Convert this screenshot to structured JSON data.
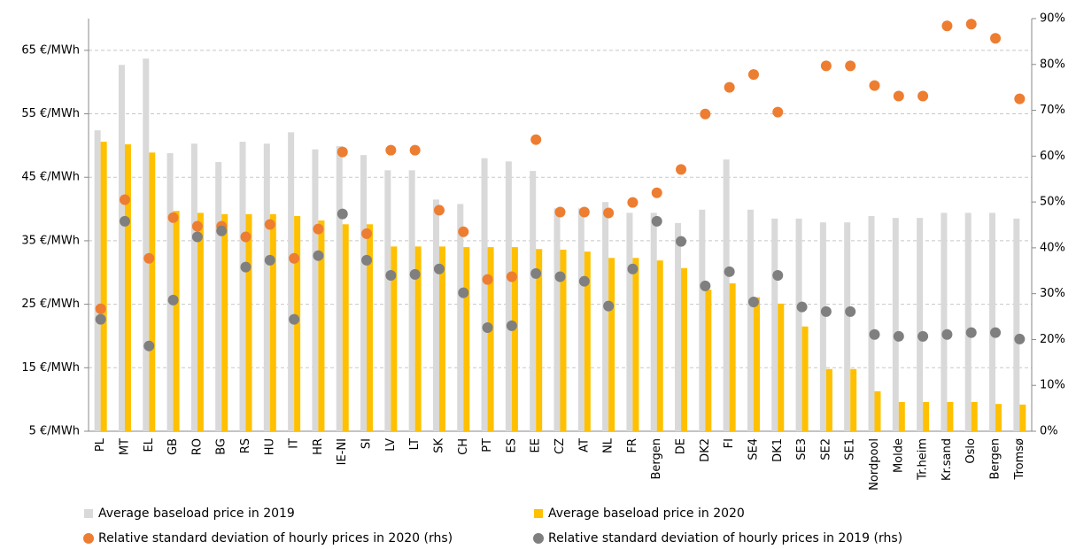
{
  "chart_data": {
    "type": "bar",
    "categories": [
      "PL",
      "MT",
      "EL",
      "GB",
      "RO",
      "BG",
      "RS",
      "HU",
      "IT",
      "HR",
      "IE-NI",
      "SI",
      "LV",
      "LT",
      "SK",
      "CH",
      "PT",
      "ES",
      "EE",
      "CZ",
      "AT",
      "NL",
      "FR",
      "Bergen",
      "DE",
      "DK2",
      "FI",
      "SE4",
      "DK1",
      "SE3",
      "SE2",
      "SE1",
      "Nordpool",
      "Molde",
      "Tr.heim",
      "Kr.sand",
      "Oslo",
      "Bergen",
      "Tromsø"
    ],
    "series": [
      {
        "name": "Average baseload price in 2019",
        "type": "bar",
        "axis": "y",
        "color": "#d9d9d9",
        "values": [
          52.4,
          62.7,
          63.7,
          48.8,
          50.3,
          47.4,
          50.6,
          50.3,
          52.1,
          49.4,
          49.9,
          48.5,
          46.1,
          46.1,
          41.5,
          40.8,
          48.0,
          47.5,
          46.0,
          40.1,
          40.1,
          41.1,
          39.4,
          39.4,
          37.8,
          39.9,
          47.8,
          39.9,
          38.5,
          38.5,
          37.9,
          37.9,
          38.9,
          38.6,
          38.6,
          39.4,
          39.4,
          39.4,
          38.5
        ]
      },
      {
        "name": "Average baseload price in 2020",
        "type": "bar",
        "axis": "y",
        "color": "#ffc000",
        "values": [
          50.6,
          50.2,
          48.9,
          39.7,
          39.4,
          39.2,
          39.2,
          39.2,
          38.9,
          38.2,
          37.6,
          37.6,
          34.1,
          34.1,
          34.1,
          34.0,
          34.0,
          34.0,
          33.7,
          33.6,
          33.3,
          32.3,
          32.3,
          31.9,
          30.7,
          27.3,
          28.3,
          26.1,
          25.1,
          21.5,
          14.8,
          14.8,
          11.3,
          9.6,
          9.6,
          9.6,
          9.6,
          9.3,
          9.2
        ]
      },
      {
        "name": "Relative standard deviation of hourly prices in 2020 (rhs)",
        "type": "scatter",
        "axis": "y2",
        "color": "#ed7d31",
        "values": [
          26.7,
          50.5,
          37.7,
          46.6,
          44.7,
          44.7,
          42.4,
          45.1,
          37.7,
          44.1,
          60.9,
          43.1,
          61.3,
          61.3,
          48.2,
          43.5,
          33.1,
          33.7,
          63.6,
          47.8,
          47.8,
          47.6,
          49.9,
          52.0,
          57.1,
          69.2,
          75.0,
          77.8,
          69.6,
          null,
          79.7,
          79.7,
          75.4,
          73.1,
          73.1,
          88.4,
          88.8,
          85.7,
          72.5
        ]
      },
      {
        "name": "Relative standard deviation of hourly prices in 2019 (rhs)",
        "type": "scatter",
        "axis": "y2",
        "color": "#7f7f7f",
        "values": [
          24.4,
          45.8,
          18.6,
          28.6,
          42.4,
          43.7,
          35.8,
          37.3,
          24.4,
          38.3,
          47.4,
          37.3,
          34.0,
          34.2,
          35.4,
          30.2,
          22.6,
          23.0,
          34.4,
          33.7,
          32.7,
          27.3,
          35.4,
          45.8,
          41.4,
          31.7,
          34.8,
          28.2,
          34.0,
          27.1,
          26.1,
          26.1,
          21.1,
          20.7,
          20.7,
          21.1,
          21.5,
          21.5,
          20.1
        ]
      }
    ],
    "ylim": [
      5,
      70
    ],
    "yticks": [
      {
        "value": 5,
        "label": "5 €/MWh"
      },
      {
        "value": 15,
        "label": "15 €/MWh"
      },
      {
        "value": 25,
        "label": "25 €/MWh"
      },
      {
        "value": 35,
        "label": "35 €/MWh"
      },
      {
        "value": 45,
        "label": "45 €/MWh"
      },
      {
        "value": 55,
        "label": "55 €/MWh"
      },
      {
        "value": 65,
        "label": "65 €/MWh"
      }
    ],
    "y2lim": [
      0,
      90
    ],
    "y2ticks": [
      {
        "value": 0,
        "label": "0%"
      },
      {
        "value": 10,
        "label": "10%"
      },
      {
        "value": 20,
        "label": "20%"
      },
      {
        "value": 30,
        "label": "30%"
      },
      {
        "value": 40,
        "label": "40%"
      },
      {
        "value": 50,
        "label": "50%"
      },
      {
        "value": 60,
        "label": "60%"
      },
      {
        "value": 70,
        "label": "70%"
      },
      {
        "value": 80,
        "label": "80%"
      },
      {
        "value": 90,
        "label": "90%"
      }
    ],
    "grid": true
  }
}
